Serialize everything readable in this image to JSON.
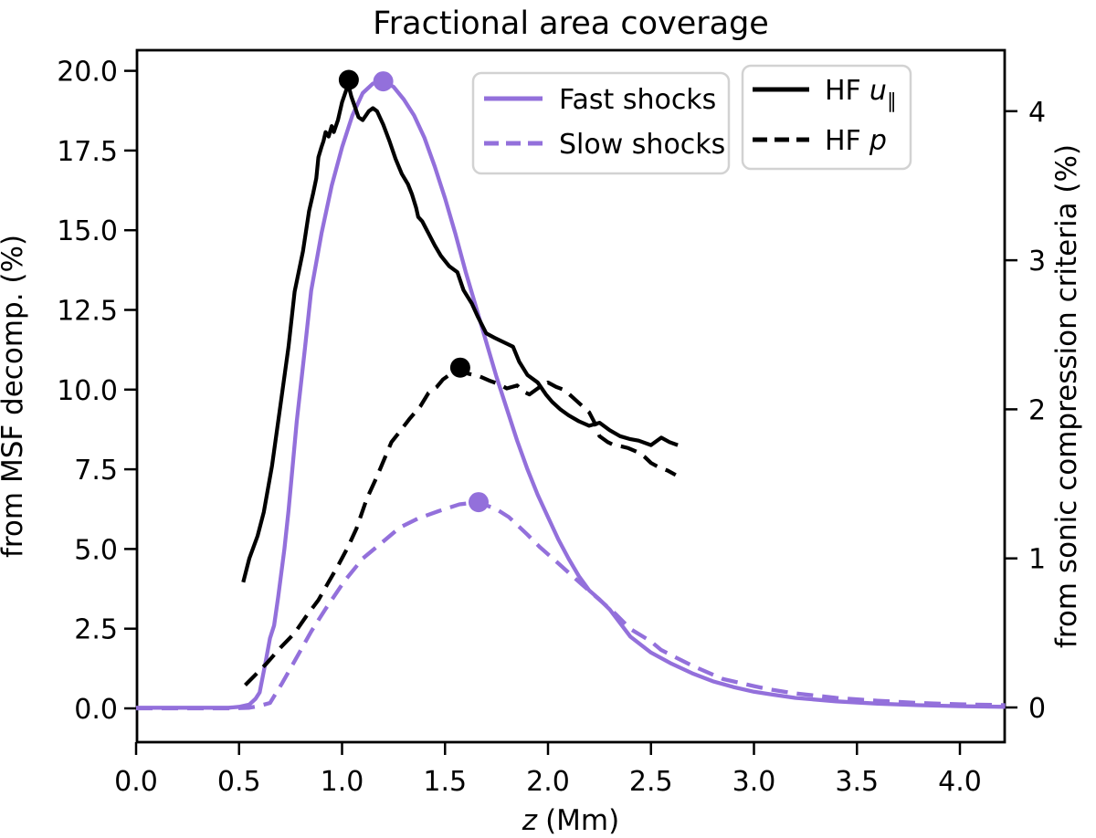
{
  "title": "Fractional area coverage",
  "axes": {
    "x": {
      "label_italic": "z",
      "label_rest": "(Mm)",
      "ticks": [
        "0.0",
        "0.5",
        "1.0",
        "1.5",
        "2.0",
        "2.5",
        "3.0",
        "3.5",
        "4.0"
      ],
      "tick_values": [
        0,
        0.5,
        1,
        1.5,
        2,
        2.5,
        3,
        3.5,
        4
      ]
    },
    "y_left": {
      "label": "from MSF decomp. (%)",
      "ticks": [
        "0.0",
        "2.5",
        "5.0",
        "7.5",
        "10.0",
        "12.5",
        "15.0",
        "17.5",
        "20.0"
      ],
      "tick_values": [
        0,
        2.5,
        5,
        7.5,
        10,
        12.5,
        15,
        17.5,
        20
      ]
    },
    "y_right": {
      "label": "from sonic compression criteria (%)",
      "ticks": [
        "0",
        "1",
        "2",
        "3",
        "4"
      ],
      "tick_values": [
        0,
        1,
        2,
        3,
        4
      ]
    }
  },
  "legends": {
    "shocks": {
      "items": [
        {
          "label": "Fast shocks",
          "style": "solid"
        },
        {
          "label": "Slow shocks",
          "style": "dashed"
        }
      ]
    },
    "hf": {
      "items": [
        {
          "label_prefix": "HF",
          "label_var": "u",
          "label_sub": "∥",
          "style": "solid"
        },
        {
          "label_prefix": "HF",
          "label_var": "p",
          "label_sub": "",
          "style": "dashed"
        }
      ]
    }
  },
  "colors": {
    "purple": "#9370DB",
    "black": "#000000",
    "legend_border": "#d2d2d2"
  },
  "chart_data": {
    "type": "line",
    "title": "Fractional area coverage",
    "xlabel": "z (Mm)",
    "xlim": [
      0,
      4.22
    ],
    "ylabel_left": "from MSF decomp. (%)",
    "ylim_left": [
      -1.06,
      20.65
    ],
    "ylabel_right": "from sonic compression criteria (%)",
    "ylim_right": [
      -0.23,
      4.41
    ],
    "grid": false,
    "legend_position": "upper center / upper right",
    "series": [
      {
        "id": "fast-shocks",
        "name": "Fast shocks",
        "axis": "left",
        "color": "purple",
        "style": "solid",
        "points": [
          [
            0.0,
            0.02
          ],
          [
            0.3,
            0.02
          ],
          [
            0.45,
            0.02
          ],
          [
            0.5,
            0.05
          ],
          [
            0.55,
            0.12
          ],
          [
            0.58,
            0.3
          ],
          [
            0.6,
            0.5
          ],
          [
            0.63,
            1.5
          ],
          [
            0.65,
            2.2
          ],
          [
            0.67,
            2.6
          ],
          [
            0.69,
            3.5
          ],
          [
            0.72,
            5.0
          ],
          [
            0.74,
            6.2
          ],
          [
            0.78,
            9.0
          ],
          [
            0.82,
            11.3
          ],
          [
            0.85,
            13.1
          ],
          [
            0.9,
            14.9
          ],
          [
            0.95,
            16.4
          ],
          [
            1.0,
            17.6
          ],
          [
            1.05,
            18.6
          ],
          [
            1.1,
            19.3
          ],
          [
            1.15,
            19.6
          ],
          [
            1.2,
            19.67
          ],
          [
            1.25,
            19.5
          ],
          [
            1.3,
            19.1
          ],
          [
            1.35,
            18.6
          ],
          [
            1.4,
            17.9
          ],
          [
            1.45,
            17.0
          ],
          [
            1.5,
            16.0
          ],
          [
            1.55,
            14.9
          ],
          [
            1.6,
            13.7
          ],
          [
            1.65,
            12.6
          ],
          [
            1.7,
            11.5
          ],
          [
            1.75,
            10.4
          ],
          [
            1.8,
            9.4
          ],
          [
            1.85,
            8.4
          ],
          [
            1.9,
            7.5
          ],
          [
            1.95,
            6.7
          ],
          [
            2.0,
            6.0
          ],
          [
            2.05,
            5.3
          ],
          [
            2.1,
            4.7
          ],
          [
            2.15,
            4.15
          ],
          [
            2.2,
            3.7
          ],
          [
            2.25,
            3.42
          ],
          [
            2.3,
            3.1
          ],
          [
            2.4,
            2.25
          ],
          [
            2.5,
            1.75
          ],
          [
            2.6,
            1.4
          ],
          [
            2.7,
            1.1
          ],
          [
            2.8,
            0.85
          ],
          [
            2.9,
            0.67
          ],
          [
            3.0,
            0.52
          ],
          [
            3.1,
            0.42
          ],
          [
            3.2,
            0.33
          ],
          [
            3.4,
            0.22
          ],
          [
            3.6,
            0.15
          ],
          [
            3.8,
            0.1
          ],
          [
            4.0,
            0.07
          ],
          [
            4.22,
            0.05
          ]
        ]
      },
      {
        "id": "slow-shocks",
        "name": "Slow shocks",
        "axis": "left",
        "color": "purple",
        "style": "dashed",
        "points": [
          [
            0.0,
            0.0
          ],
          [
            0.45,
            0.0
          ],
          [
            0.55,
            0.02
          ],
          [
            0.6,
            0.08
          ],
          [
            0.65,
            0.17
          ],
          [
            0.71,
            0.8
          ],
          [
            0.78,
            1.6
          ],
          [
            0.85,
            2.41
          ],
          [
            0.92,
            3.12
          ],
          [
            1.01,
            3.98
          ],
          [
            1.1,
            4.7
          ],
          [
            1.19,
            5.18
          ],
          [
            1.28,
            5.67
          ],
          [
            1.37,
            5.96
          ],
          [
            1.47,
            6.19
          ],
          [
            1.57,
            6.4
          ],
          [
            1.66,
            6.47
          ],
          [
            1.75,
            6.25
          ],
          [
            1.81,
            6.0
          ],
          [
            1.9,
            5.45
          ],
          [
            1.96,
            5.06
          ],
          [
            2.05,
            4.55
          ],
          [
            2.11,
            4.2
          ],
          [
            2.18,
            3.8
          ],
          [
            2.26,
            3.35
          ],
          [
            2.33,
            2.95
          ],
          [
            2.4,
            2.49
          ],
          [
            2.5,
            2.1
          ],
          [
            2.55,
            1.83
          ],
          [
            2.65,
            1.5
          ],
          [
            2.7,
            1.34
          ],
          [
            2.85,
            0.92
          ],
          [
            3.0,
            0.7
          ],
          [
            3.07,
            0.6
          ],
          [
            3.2,
            0.47
          ],
          [
            3.4,
            0.33
          ],
          [
            3.6,
            0.24
          ],
          [
            3.8,
            0.17
          ],
          [
            4.0,
            0.13
          ],
          [
            4.22,
            0.1
          ]
        ]
      },
      {
        "id": "hf-u",
        "name": "HF u_parallel",
        "axis": "right",
        "color": "black",
        "style": "solid",
        "points": [
          [
            0.52,
            0.84
          ],
          [
            0.55,
            1.0
          ],
          [
            0.59,
            1.15
          ],
          [
            0.62,
            1.31
          ],
          [
            0.66,
            1.62
          ],
          [
            0.7,
            2.02
          ],
          [
            0.74,
            2.42
          ],
          [
            0.77,
            2.79
          ],
          [
            0.81,
            3.06
          ],
          [
            0.84,
            3.33
          ],
          [
            0.86,
            3.45
          ],
          [
            0.875,
            3.55
          ],
          [
            0.885,
            3.69
          ],
          [
            0.9,
            3.76
          ],
          [
            0.91,
            3.8
          ],
          [
            0.92,
            3.86
          ],
          [
            0.935,
            3.83
          ],
          [
            0.95,
            3.9
          ],
          [
            0.96,
            3.86
          ],
          [
            0.98,
            3.94
          ],
          [
            1.0,
            4.06
          ],
          [
            1.02,
            4.14
          ],
          [
            1.03,
            4.18
          ],
          [
            1.045,
            4.1
          ],
          [
            1.06,
            4.04
          ],
          [
            1.08,
            3.96
          ],
          [
            1.1,
            3.94
          ],
          [
            1.13,
            4.0
          ],
          [
            1.15,
            4.02
          ],
          [
            1.17,
            4.0
          ],
          [
            1.2,
            3.91
          ],
          [
            1.23,
            3.8
          ],
          [
            1.26,
            3.68
          ],
          [
            1.29,
            3.58
          ],
          [
            1.32,
            3.51
          ],
          [
            1.34,
            3.44
          ],
          [
            1.36,
            3.35
          ],
          [
            1.37,
            3.29
          ],
          [
            1.39,
            3.26
          ],
          [
            1.42,
            3.18
          ],
          [
            1.45,
            3.1
          ],
          [
            1.48,
            3.03
          ],
          [
            1.52,
            2.96
          ],
          [
            1.56,
            2.92
          ],
          [
            1.59,
            2.8
          ],
          [
            1.63,
            2.71
          ],
          [
            1.66,
            2.62
          ],
          [
            1.7,
            2.51
          ],
          [
            1.74,
            2.48
          ],
          [
            1.77,
            2.46
          ],
          [
            1.8,
            2.44
          ],
          [
            1.83,
            2.42
          ],
          [
            1.86,
            2.32
          ],
          [
            1.9,
            2.23
          ],
          [
            1.95,
            2.18
          ],
          [
            1.99,
            2.1
          ],
          [
            2.02,
            2.05
          ],
          [
            2.06,
            2.0
          ],
          [
            2.1,
            1.96
          ],
          [
            2.15,
            1.92
          ],
          [
            2.2,
            1.89
          ],
          [
            2.25,
            1.91
          ],
          [
            2.3,
            1.86
          ],
          [
            2.35,
            1.82
          ],
          [
            2.4,
            1.8
          ],
          [
            2.44,
            1.79
          ],
          [
            2.5,
            1.76
          ],
          [
            2.55,
            1.81
          ],
          [
            2.59,
            1.78
          ],
          [
            2.63,
            1.76
          ]
        ]
      },
      {
        "id": "hf-p",
        "name": "HF p",
        "axis": "right",
        "color": "black",
        "style": "dashed",
        "points": [
          [
            0.53,
            0.15
          ],
          [
            0.58,
            0.22
          ],
          [
            0.63,
            0.29
          ],
          [
            0.7,
            0.4
          ],
          [
            0.77,
            0.5
          ],
          [
            0.83,
            0.62
          ],
          [
            0.885,
            0.72
          ],
          [
            0.93,
            0.83
          ],
          [
            0.98,
            0.95
          ],
          [
            1.03,
            1.08
          ],
          [
            1.07,
            1.2
          ],
          [
            1.12,
            1.4
          ],
          [
            1.17,
            1.55
          ],
          [
            1.24,
            1.78
          ],
          [
            1.28,
            1.85
          ],
          [
            1.33,
            1.94
          ],
          [
            1.38,
            2.02
          ],
          [
            1.42,
            2.11
          ],
          [
            1.46,
            2.15
          ],
          [
            1.49,
            2.2
          ],
          [
            1.53,
            2.24
          ],
          [
            1.57,
            2.26
          ],
          [
            1.61,
            2.24
          ],
          [
            1.67,
            2.22
          ],
          [
            1.72,
            2.19
          ],
          [
            1.76,
            2.17
          ],
          [
            1.8,
            2.14
          ],
          [
            1.85,
            2.16
          ],
          [
            1.88,
            2.12
          ],
          [
            1.91,
            2.1
          ],
          [
            1.96,
            2.15
          ],
          [
            2.0,
            2.18
          ],
          [
            2.04,
            2.15
          ],
          [
            2.08,
            2.13
          ],
          [
            2.12,
            2.08
          ],
          [
            2.16,
            2.03
          ],
          [
            2.2,
            1.98
          ],
          [
            2.23,
            1.9
          ],
          [
            2.25,
            1.82
          ],
          [
            2.29,
            1.78
          ],
          [
            2.32,
            1.76
          ],
          [
            2.36,
            1.75
          ],
          [
            2.39,
            1.74
          ],
          [
            2.44,
            1.71
          ],
          [
            2.47,
            1.68
          ],
          [
            2.5,
            1.64
          ],
          [
            2.54,
            1.61
          ],
          [
            2.58,
            1.59
          ],
          [
            2.62,
            1.56
          ]
        ]
      }
    ],
    "markers": [
      {
        "series": "fast-shocks",
        "z": 1.2,
        "value": 19.67,
        "meaning": "peak of Fast shocks"
      },
      {
        "series": "slow-shocks",
        "z": 1.663,
        "value": 6.47,
        "meaning": "peak of Slow shocks"
      },
      {
        "series": "hf-u",
        "z": 1.033,
        "value": 4.21,
        "meaning": "peak of HF u_parallel"
      },
      {
        "series": "hf-p",
        "z": 1.574,
        "value": 2.28,
        "meaning": "peak of HF p"
      }
    ]
  }
}
